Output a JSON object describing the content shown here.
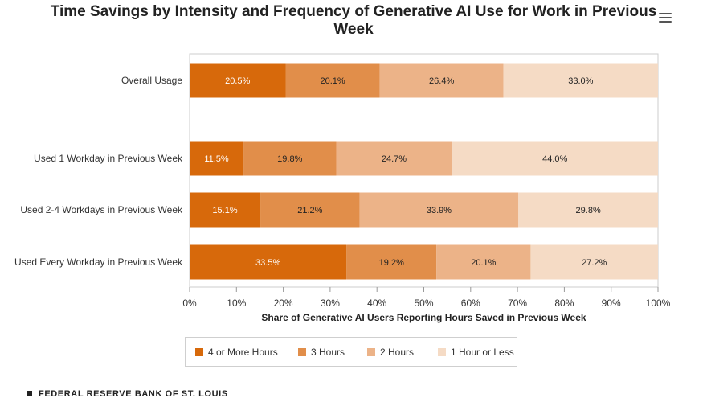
{
  "chart_data": {
    "type": "bar",
    "orientation": "horizontal",
    "stacked": true,
    "title": "Time Savings by Intensity and Frequency of Generative AI Use for Work in Previous Week",
    "xlabel": "Share of Generative AI Users Reporting Hours Saved in Previous Week",
    "ylabel": "",
    "xlim": [
      0,
      100
    ],
    "x_ticks": [
      "0%",
      "10%",
      "20%",
      "30%",
      "40%",
      "50%",
      "60%",
      "70%",
      "80%",
      "90%",
      "100%"
    ],
    "categories": [
      "Overall Usage",
      "Used 1 Workday in Previous Week",
      "Used 2-4 Workdays in Previous Week",
      "Used Every Workday in Previous Week"
    ],
    "series": [
      {
        "name": "4 or More Hours",
        "color": "#d7690b",
        "values": [
          20.5,
          11.5,
          15.1,
          33.5
        ],
        "labels": [
          "20.5%",
          "11.5%",
          "15.1%",
          "33.5%"
        ]
      },
      {
        "name": "3 Hours",
        "color": "#e18e4a",
        "values": [
          20.1,
          19.8,
          21.2,
          19.2
        ],
        "labels": [
          "20.1%",
          "19.8%",
          "21.2%",
          "19.2%"
        ]
      },
      {
        "name": "2 Hours",
        "color": "#ecb388",
        "values": [
          26.4,
          24.7,
          33.9,
          20.1
        ],
        "labels": [
          "26.4%",
          "24.7%",
          "33.9%",
          "20.1%"
        ]
      },
      {
        "name": "1 Hour or Less",
        "color": "#f5dbc5",
        "values": [
          33.0,
          44.0,
          29.8,
          27.2
        ],
        "labels": [
          "33.0%",
          "44.0%",
          "29.8%",
          "27.2%"
        ]
      }
    ],
    "legend_position": "bottom",
    "grid": true
  },
  "legend": {
    "items": [
      {
        "label": "4 or More Hours",
        "color": "#d7690b"
      },
      {
        "label": "3 Hours",
        "color": "#e18e4a"
      },
      {
        "label": "2 Hours",
        "color": "#ecb388"
      },
      {
        "label": "1 Hour or Less",
        "color": "#f5dbc5"
      }
    ]
  },
  "menu_icon": "hamburger-menu-icon",
  "footer": {
    "source": "FEDERAL RESERVE BANK OF ST. LOUIS"
  }
}
